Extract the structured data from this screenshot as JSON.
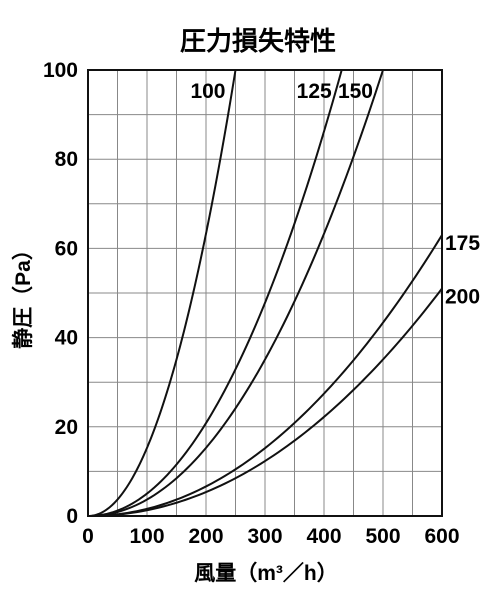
{
  "chart_data": {
    "type": "line",
    "title": "圧力損失特性",
    "xlabel": "風量（m³／h）",
    "ylabel": "静圧（Pa）",
    "xlim": [
      0,
      600
    ],
    "ylim": [
      0,
      100
    ],
    "x_ticks": [
      "0",
      "100",
      "200",
      "300",
      "400",
      "500",
      "600"
    ],
    "y_ticks": [
      "0",
      "20",
      "40",
      "60",
      "80",
      "100"
    ],
    "grid": true,
    "legend": "none",
    "series": [
      {
        "name": "100",
        "x": [
          0,
          50,
          100,
          150,
          200,
          225,
          250
        ],
        "y": [
          0,
          4,
          16,
          37,
          64,
          82,
          100
        ]
      },
      {
        "name": "125",
        "x": [
          0,
          100,
          200,
          300,
          350,
          400,
          430
        ],
        "y": [
          0,
          5.5,
          21.5,
          48.5,
          66,
          86,
          100
        ]
      },
      {
        "name": "150",
        "x": [
          0,
          100,
          200,
          300,
          400,
          450,
          500
        ],
        "y": [
          0,
          4.1,
          16.5,
          37,
          66,
          83,
          100
        ]
      },
      {
        "name": "175",
        "x": [
          0,
          100,
          200,
          300,
          400,
          500,
          600
        ],
        "y": [
          0,
          1.8,
          7,
          16,
          28,
          44,
          63
        ]
      },
      {
        "name": "200",
        "x": [
          0,
          100,
          200,
          300,
          400,
          500,
          600
        ],
        "y": [
          0,
          1.4,
          5.7,
          13,
          23,
          36,
          51
        ]
      }
    ]
  }
}
